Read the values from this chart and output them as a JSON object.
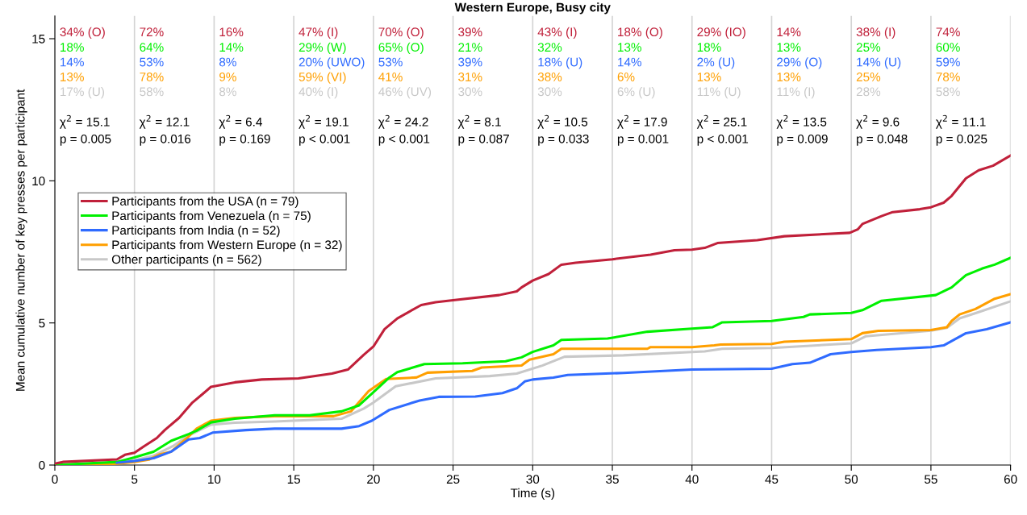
{
  "chart_data": {
    "type": "line",
    "title": "Western Europe, Busy city",
    "xlabel": "Time (s)",
    "ylabel": "Mean cumulative number of key presses per participant",
    "xlim": [
      0,
      60
    ],
    "xticks": [
      0,
      5,
      10,
      15,
      20,
      25,
      30,
      35,
      40,
      45,
      50,
      55,
      60
    ],
    "ylim": [
      0,
      15.8
    ],
    "yticks": [
      0,
      5,
      10,
      15
    ],
    "grid": "x",
    "legend": "left",
    "line_style": "solid",
    "marker": "none",
    "series": [
      {
        "name": "Participants from the USA (n = 79)",
        "color": "#c0203a",
        "x": [
          0,
          0.5,
          3.9,
          4.4,
          5,
          5.6,
          6.4,
          6.9,
          7.8,
          8.6,
          9.3,
          9.8,
          11.3,
          13,
          15.3,
          17.4,
          18.4,
          19.4,
          20,
          20.7,
          21.5,
          23,
          23.9,
          25,
          27.9,
          29,
          29.3,
          30,
          31,
          31.8,
          32.7,
          35,
          37.4,
          38.9,
          40,
          40.8,
          41.6,
          44.1,
          45.8,
          49.9,
          50.4,
          50.7,
          51.9,
          52.6,
          54.3,
          55,
          55.8,
          56.3,
          57.2,
          58,
          58.9,
          60
        ],
        "values": [
          0.05,
          0.11,
          0.2,
          0.36,
          0.43,
          0.66,
          0.95,
          1.23,
          1.66,
          2.18,
          2.51,
          2.75,
          2.91,
          3.01,
          3.05,
          3.22,
          3.36,
          3.88,
          4.17,
          4.78,
          5.16,
          5.63,
          5.73,
          5.8,
          5.98,
          6.11,
          6.25,
          6.49,
          6.72,
          7.05,
          7.12,
          7.24,
          7.4,
          7.56,
          7.58,
          7.64,
          7.81,
          7.91,
          8.05,
          8.17,
          8.29,
          8.48,
          8.76,
          8.9,
          9.0,
          9.07,
          9.23,
          9.47,
          10.09,
          10.37,
          10.53,
          10.89
        ]
      },
      {
        "name": "Participants from Venezuela (n = 75)",
        "color": "#00f000",
        "x": [
          0,
          3.9,
          5,
          6.2,
          7.3,
          8.4,
          8.9,
          9.8,
          11.3,
          13.8,
          16,
          18,
          19.1,
          20,
          21,
          21.5,
          23.2,
          25.6,
          28.3,
          29.3,
          30,
          31.3,
          31.8,
          34.7,
          37.2,
          40,
          41.3,
          41.9,
          45,
          47,
          47.4,
          50,
          50.7,
          51.9,
          55.3,
          56.3,
          57.2,
          58.2,
          59,
          60
        ],
        "values": [
          0,
          0.11,
          0.27,
          0.47,
          0.85,
          1.09,
          1.21,
          1.5,
          1.63,
          1.75,
          1.75,
          1.89,
          2.1,
          2.56,
          3.08,
          3.27,
          3.55,
          3.58,
          3.65,
          3.79,
          3.98,
          4.21,
          4.4,
          4.45,
          4.69,
          4.8,
          4.85,
          5.02,
          5.07,
          5.21,
          5.3,
          5.35,
          5.45,
          5.78,
          5.98,
          6.25,
          6.68,
          6.91,
          7.05,
          7.29
        ]
      },
      {
        "name": "Participants from India (n = 52)",
        "color": "#2f6bff",
        "x": [
          3.9,
          5,
          6.2,
          7.3,
          8.4,
          9.1,
          9.9,
          12,
          13.8,
          18,
          19.1,
          19.9,
          21,
          22.9,
          24.1,
          26.4,
          28.1,
          29,
          29.5,
          30,
          31.3,
          32.2,
          35.7,
          40,
          45,
          46.3,
          47.4,
          48.7,
          50,
          51.6,
          55,
          55.8,
          57.2,
          58.5,
          60
        ],
        "values": [
          0.08,
          0.14,
          0.24,
          0.47,
          0.9,
          0.95,
          1.14,
          1.23,
          1.28,
          1.28,
          1.37,
          1.56,
          1.94,
          2.27,
          2.4,
          2.41,
          2.53,
          2.7,
          2.94,
          3.01,
          3.08,
          3.17,
          3.24,
          3.36,
          3.39,
          3.55,
          3.6,
          3.9,
          3.98,
          4.05,
          4.15,
          4.21,
          4.64,
          4.78,
          5.02
        ]
      },
      {
        "name": "Participants from Western Europe (n = 32)",
        "color": "#ff9f00",
        "x": [
          0,
          2,
          3.9,
          5,
          5.9,
          6.6,
          7.3,
          8.3,
          8.9,
          9.8,
          11.3,
          13.8,
          17.5,
          18.6,
          19.7,
          20.8,
          22.7,
          23.4,
          26.2,
          26.8,
          29.3,
          29.8,
          31.3,
          31.8,
          37.2,
          37.4,
          40,
          41.4,
          41.8,
          45,
          45.8,
          50,
          50.7,
          51.7,
          55,
          56,
          56.3,
          56.8,
          57.8,
          59,
          60
        ],
        "values": [
          0,
          0,
          0.05,
          0.11,
          0.19,
          0.38,
          0.47,
          0.95,
          1.28,
          1.56,
          1.66,
          1.72,
          1.72,
          1.89,
          2.6,
          3.03,
          3.08,
          3.25,
          3.31,
          3.43,
          3.5,
          3.71,
          3.9,
          4.09,
          4.09,
          4.15,
          4.15,
          4.21,
          4.24,
          4.26,
          4.34,
          4.43,
          4.64,
          4.72,
          4.75,
          4.85,
          5.07,
          5.3,
          5.49,
          5.85,
          6.01
        ]
      },
      {
        "name": "Other participants (n = 562)",
        "color": "#c8c8c8",
        "x": [
          0,
          3.9,
          5,
          6.2,
          7.4,
          8.4,
          9.8,
          11.3,
          13.8,
          18,
          19.4,
          20,
          21.4,
          23.9,
          27.3,
          29,
          30.6,
          32,
          35.7,
          40,
          40.8,
          41.9,
          45,
          50,
          50.9,
          55,
          56,
          56.8,
          58,
          60
        ],
        "values": [
          0,
          0.08,
          0.17,
          0.33,
          0.66,
          1.04,
          1.42,
          1.49,
          1.53,
          1.63,
          1.99,
          2.2,
          2.77,
          3.05,
          3.13,
          3.22,
          3.5,
          3.81,
          3.86,
          3.98,
          4.0,
          4.09,
          4.12,
          4.28,
          4.53,
          4.73,
          4.83,
          5.16,
          5.38,
          5.76
        ]
      }
    ],
    "annotations": [
      "34% (O)",
      "18%",
      "14%",
      "13%",
      "17% (U)",
      "χ$^{2}$ = 15.1",
      "p = 0.005",
      "72%",
      "64%",
      "53%",
      "78%",
      "58%",
      "χ$^{2}$ = 12.1",
      "p = 0.016",
      "16%",
      "14%",
      "8%",
      "9%",
      "8%",
      "χ$^{2}$ = 6.4",
      "p = 0.169",
      "47% (I)",
      "29% (W)",
      "20% (UWO)",
      "59% (VI)",
      "40% (I)",
      "χ$^{2}$ = 19.1",
      "p < 0.001",
      "70% (O)",
      "65% (O)",
      "53%",
      "41%",
      "46% (UV)",
      "χ$^{2}$ = 24.2",
      "p < 0.001",
      "39%",
      "21%",
      "39%",
      "31%",
      "30%",
      "χ$^{2}$ = 8.1",
      "p = 0.087",
      "43% (I)",
      "32%",
      "18% (U)",
      "38%",
      "30%",
      "χ$^{2}$ = 10.5",
      "p = 0.033",
      "18% (O)",
      "13%",
      "14%",
      "6%",
      "6% (U)",
      "χ$^{2}$ = 17.9",
      "p = 0.001",
      "29% (IO)",
      "18%",
      "2% (U)",
      "13%",
      "11% (U)",
      "χ$^{2}$ = 25.1",
      "p < 0.001",
      "14%",
      "13%",
      "29% (O)",
      "13%",
      "11% (I)",
      "χ$^{2}$ = 13.5",
      "p = 0.009",
      "38% (I)",
      "25%",
      "14% (U)",
      "25%",
      "28%",
      "χ$^{2}$ = 9.6",
      "p = 0.048",
      "74%",
      "60%",
      "59%",
      "78%",
      "58%",
      "χ$^{2}$ = 11.1",
      "p = 0.025"
    ]
  }
}
